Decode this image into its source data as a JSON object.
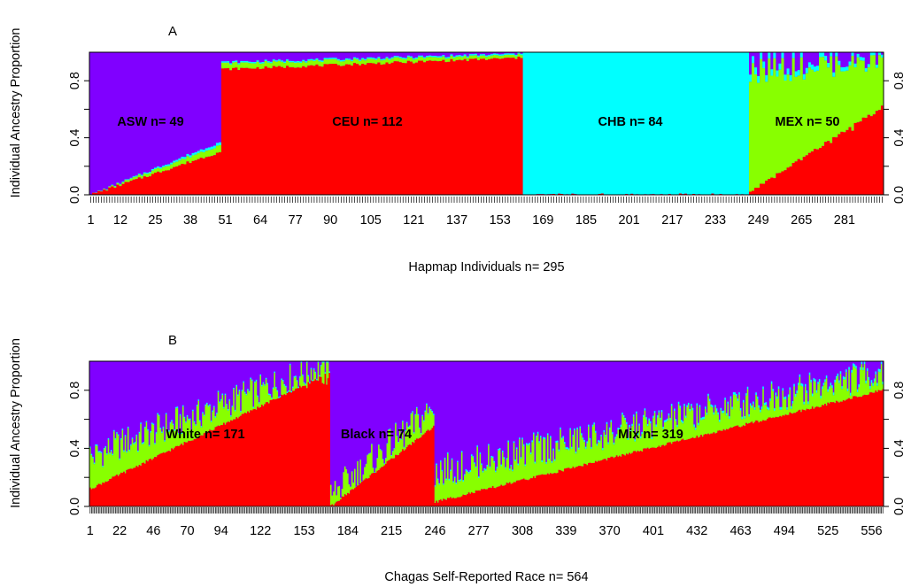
{
  "colors": {
    "red": "#ff0000",
    "green": "#88ff00",
    "cyan": "#00ffff",
    "purple": "#8000ff",
    "axis": "#000000"
  },
  "chart_data": [
    {
      "type": "area",
      "panel_label": "A",
      "ylabel": "Individual Ancestry Proportion",
      "xlabel": "Hapmap Individuals n= 295",
      "n": 295,
      "ylim": [
        0,
        1
      ],
      "y_ticks": [
        "0.0",
        "0.4",
        "0.8"
      ],
      "y_tick_values": [
        0,
        0.4,
        0.8
      ],
      "x_ticks": [
        "1",
        "12",
        "25",
        "38",
        "51",
        "64",
        "77",
        "90",
        "105",
        "121",
        "137",
        "153",
        "169",
        "185",
        "201",
        "217",
        "233",
        "249",
        "265",
        "281"
      ],
      "series_order": [
        "red",
        "green",
        "cyan",
        "purple"
      ],
      "groups": [
        {
          "label": "ASW n= 49",
          "start": 1,
          "end": 49,
          "red_range": [
            0.0,
            0.3
          ],
          "green_range": [
            0.0,
            0.05
          ],
          "cyan_range": [
            0.0,
            0.02
          ]
        },
        {
          "label": "CEU n= 112",
          "start": 50,
          "end": 161,
          "red_range": [
            0.88,
            0.96
          ],
          "green_range": [
            0.04,
            0.02
          ],
          "cyan_range": [
            0.01,
            0.01
          ]
        },
        {
          "label": "CHB n= 84",
          "start": 162,
          "end": 245,
          "red_range": [
            0.0,
            0.0
          ],
          "green_range": [
            0.0,
            0.0
          ],
          "cyan_range": [
            1.0,
            1.0
          ]
        },
        {
          "label": "MEX n= 50",
          "start": 246,
          "end": 295,
          "red_range": [
            0.02,
            0.62
          ],
          "green_range": [
            0.86,
            0.34
          ],
          "cyan_range": [
            0.05,
            0.02
          ]
        }
      ]
    },
    {
      "type": "area",
      "panel_label": "B",
      "ylabel": "Individual Ancestry Proportion",
      "xlabel": "Chagas Self-Reported Race n= 564",
      "n": 564,
      "ylim": [
        0,
        1
      ],
      "y_ticks": [
        "0.0",
        "0.4",
        "0.8"
      ],
      "y_tick_values": [
        0,
        0.4,
        0.8
      ],
      "x_ticks": [
        "1",
        "22",
        "46",
        "70",
        "94",
        "122",
        "153",
        "184",
        "215",
        "246",
        "277",
        "308",
        "339",
        "370",
        "401",
        "432",
        "463",
        "494",
        "525",
        "556"
      ],
      "series_order": [
        "red",
        "green",
        "cyan",
        "purple"
      ],
      "groups": [
        {
          "label": "White n= 171",
          "start": 1,
          "end": 171,
          "red_range": [
            0.12,
            0.92
          ],
          "green_range": [
            0.22,
            0.06
          ],
          "cyan_range": [
            0.01,
            0.01
          ]
        },
        {
          "label": "Black n= 74",
          "start": 172,
          "end": 245,
          "red_range": [
            0.0,
            0.55
          ],
          "green_range": [
            0.08,
            0.12
          ],
          "cyan_range": [
            0.0,
            0.01
          ]
        },
        {
          "label": "Mix n= 319",
          "start": 246,
          "end": 564,
          "red_range": [
            0.03,
            0.8
          ],
          "green_range": [
            0.2,
            0.12
          ],
          "cyan_range": [
            0.01,
            0.02
          ]
        }
      ]
    }
  ]
}
